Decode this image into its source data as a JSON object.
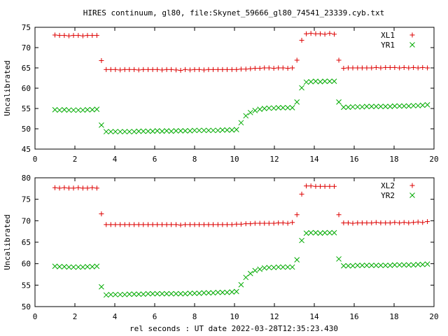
{
  "title": "HIRES continuum, gl80, file:Skynet_59666_gl80_74541_23339.cyb.txt",
  "xlabel": "rel seconds : UT date 2022-03-28T12:35:23.430",
  "chart_data": [
    {
      "type": "scatter",
      "ylabel": "Uncalibrated",
      "xlim": [
        0,
        20
      ],
      "ylim": [
        45,
        75
      ],
      "xticks": [
        0,
        2,
        4,
        6,
        8,
        10,
        12,
        14,
        16,
        18,
        20
      ],
      "yticks": [
        45,
        50,
        55,
        60,
        65,
        70,
        75
      ],
      "legend_position": "top-right",
      "series": [
        {
          "name": "XL1",
          "marker": "plus",
          "color": "#dd0000",
          "x": [
            1.0,
            1.23,
            1.47,
            1.7,
            1.93,
            2.17,
            2.4,
            2.63,
            2.87,
            3.1,
            3.33,
            3.57,
            3.8,
            4.03,
            4.27,
            4.5,
            4.73,
            4.97,
            5.2,
            5.43,
            5.67,
            5.9,
            6.13,
            6.37,
            6.6,
            6.83,
            7.07,
            7.3,
            7.53,
            7.77,
            8.0,
            8.23,
            8.47,
            8.7,
            8.93,
            9.17,
            9.4,
            9.63,
            9.87,
            10.1,
            10.33,
            10.57,
            10.8,
            11.03,
            11.27,
            11.5,
            11.73,
            11.97,
            12.2,
            12.43,
            12.67,
            12.9,
            13.13,
            13.37,
            13.6,
            13.83,
            14.07,
            14.3,
            14.53,
            14.77,
            15.0,
            15.23,
            15.47,
            15.7,
            15.93,
            16.17,
            16.4,
            16.63,
            16.87,
            17.1,
            17.33,
            17.57,
            17.8,
            18.03,
            18.27,
            18.5,
            18.73,
            18.97,
            19.2,
            19.43,
            19.67
          ],
          "y": [
            73.1,
            73.0,
            73.0,
            72.9,
            73.0,
            73.0,
            72.9,
            73.0,
            73.0,
            73.0,
            66.8,
            64.6,
            64.6,
            64.6,
            64.5,
            64.6,
            64.6,
            64.6,
            64.5,
            64.6,
            64.6,
            64.6,
            64.6,
            64.5,
            64.6,
            64.6,
            64.5,
            64.4,
            64.6,
            64.5,
            64.6,
            64.6,
            64.5,
            64.6,
            64.6,
            64.6,
            64.6,
            64.6,
            64.6,
            64.6,
            64.7,
            64.7,
            64.8,
            64.9,
            64.9,
            65.0,
            65.0,
            64.9,
            65.0,
            65.0,
            64.9,
            65.0,
            66.9,
            71.8,
            73.4,
            73.5,
            73.4,
            73.4,
            73.3,
            73.5,
            73.3,
            66.9,
            64.9,
            65.0,
            65.0,
            65.0,
            65.0,
            65.0,
            65.0,
            65.1,
            65.0,
            65.1,
            65.1,
            65.1,
            65.0,
            65.1,
            65.0,
            65.1,
            65.0,
            65.1,
            65.0
          ]
        },
        {
          "name": "YR1",
          "marker": "cross",
          "color": "#00aa00",
          "x": [
            1.0,
            1.23,
            1.47,
            1.7,
            1.93,
            2.17,
            2.4,
            2.63,
            2.87,
            3.1,
            3.33,
            3.57,
            3.8,
            4.03,
            4.27,
            4.5,
            4.73,
            4.97,
            5.2,
            5.43,
            5.67,
            5.9,
            6.13,
            6.37,
            6.6,
            6.83,
            7.07,
            7.3,
            7.53,
            7.77,
            8.0,
            8.23,
            8.47,
            8.7,
            8.93,
            9.17,
            9.4,
            9.63,
            9.87,
            10.1,
            10.33,
            10.57,
            10.8,
            11.03,
            11.27,
            11.5,
            11.73,
            11.97,
            12.2,
            12.43,
            12.67,
            12.9,
            13.13,
            13.37,
            13.6,
            13.83,
            14.07,
            14.3,
            14.53,
            14.77,
            15.0,
            15.23,
            15.47,
            15.7,
            15.93,
            16.17,
            16.4,
            16.63,
            16.87,
            17.1,
            17.33,
            17.57,
            17.8,
            18.03,
            18.27,
            18.5,
            18.73,
            18.97,
            19.2,
            19.43,
            19.67
          ],
          "y": [
            54.7,
            54.6,
            54.7,
            54.6,
            54.6,
            54.6,
            54.6,
            54.7,
            54.7,
            54.8,
            50.9,
            49.3,
            49.3,
            49.3,
            49.3,
            49.3,
            49.3,
            49.3,
            49.4,
            49.4,
            49.4,
            49.4,
            49.5,
            49.4,
            49.5,
            49.4,
            49.5,
            49.5,
            49.5,
            49.5,
            49.6,
            49.6,
            49.6,
            49.6,
            49.6,
            49.6,
            49.7,
            49.7,
            49.7,
            49.8,
            51.5,
            53.2,
            54.0,
            54.5,
            54.8,
            55.0,
            55.1,
            55.1,
            55.2,
            55.2,
            55.2,
            55.2,
            56.6,
            60.1,
            61.5,
            61.6,
            61.7,
            61.6,
            61.7,
            61.7,
            61.7,
            56.6,
            55.3,
            55.3,
            55.4,
            55.4,
            55.4,
            55.5,
            55.5,
            55.5,
            55.5,
            55.5,
            55.5,
            55.6,
            55.6,
            55.6,
            55.6,
            55.7,
            55.7,
            55.8,
            55.9
          ]
        }
      ]
    },
    {
      "type": "scatter",
      "ylabel": "Uncalibrated",
      "xlim": [
        0,
        20
      ],
      "ylim": [
        50,
        80
      ],
      "xticks": [
        0,
        2,
        4,
        6,
        8,
        10,
        12,
        14,
        16,
        18,
        20
      ],
      "yticks": [
        50,
        55,
        60,
        65,
        70,
        75,
        80
      ],
      "legend_position": "top-right",
      "series": [
        {
          "name": "XL2",
          "marker": "plus",
          "color": "#dd0000",
          "x": [
            1.0,
            1.23,
            1.47,
            1.7,
            1.93,
            2.17,
            2.4,
            2.63,
            2.87,
            3.1,
            3.33,
            3.57,
            3.8,
            4.03,
            4.27,
            4.5,
            4.73,
            4.97,
            5.2,
            5.43,
            5.67,
            5.9,
            6.13,
            6.37,
            6.6,
            6.83,
            7.07,
            7.3,
            7.53,
            7.77,
            8.0,
            8.23,
            8.47,
            8.7,
            8.93,
            9.17,
            9.4,
            9.63,
            9.87,
            10.1,
            10.33,
            10.57,
            10.8,
            11.03,
            11.27,
            11.5,
            11.73,
            11.97,
            12.2,
            12.43,
            12.67,
            12.9,
            13.13,
            13.37,
            13.6,
            13.83,
            14.07,
            14.3,
            14.53,
            14.77,
            15.0,
            15.23,
            15.47,
            15.7,
            15.93,
            16.17,
            16.4,
            16.63,
            16.87,
            17.1,
            17.33,
            17.57,
            17.8,
            18.03,
            18.27,
            18.5,
            18.73,
            18.97,
            19.2,
            19.43,
            19.67
          ],
          "y": [
            77.7,
            77.6,
            77.7,
            77.6,
            77.6,
            77.7,
            77.6,
            77.6,
            77.7,
            77.6,
            71.6,
            69.1,
            69.1,
            69.1,
            69.1,
            69.1,
            69.1,
            69.1,
            69.1,
            69.1,
            69.1,
            69.1,
            69.1,
            69.1,
            69.1,
            69.1,
            69.1,
            69.0,
            69.1,
            69.1,
            69.1,
            69.1,
            69.1,
            69.1,
            69.1,
            69.1,
            69.1,
            69.1,
            69.1,
            69.2,
            69.2,
            69.3,
            69.3,
            69.4,
            69.4,
            69.4,
            69.4,
            69.4,
            69.5,
            69.5,
            69.4,
            69.6,
            71.4,
            76.2,
            78.1,
            78.1,
            78.0,
            78.0,
            78.0,
            78.0,
            78.0,
            71.4,
            69.5,
            69.5,
            69.4,
            69.5,
            69.5,
            69.5,
            69.5,
            69.6,
            69.5,
            69.5,
            69.5,
            69.6,
            69.5,
            69.6,
            69.5,
            69.6,
            69.7,
            69.6,
            69.8
          ]
        },
        {
          "name": "YR2",
          "marker": "cross",
          "color": "#00aa00",
          "x": [
            1.0,
            1.23,
            1.47,
            1.7,
            1.93,
            2.17,
            2.4,
            2.63,
            2.87,
            3.1,
            3.33,
            3.57,
            3.8,
            4.03,
            4.27,
            4.5,
            4.73,
            4.97,
            5.2,
            5.43,
            5.67,
            5.9,
            6.13,
            6.37,
            6.6,
            6.83,
            7.07,
            7.3,
            7.53,
            7.77,
            8.0,
            8.23,
            8.47,
            8.7,
            8.93,
            9.17,
            9.4,
            9.63,
            9.87,
            10.1,
            10.33,
            10.57,
            10.8,
            11.03,
            11.27,
            11.5,
            11.73,
            11.97,
            12.2,
            12.43,
            12.67,
            12.9,
            13.13,
            13.37,
            13.6,
            13.83,
            14.07,
            14.3,
            14.53,
            14.77,
            15.0,
            15.23,
            15.47,
            15.7,
            15.93,
            16.17,
            16.4,
            16.63,
            16.87,
            17.1,
            17.33,
            17.57,
            17.8,
            18.03,
            18.27,
            18.5,
            18.73,
            18.97,
            19.2,
            19.43,
            19.67
          ],
          "y": [
            59.4,
            59.3,
            59.3,
            59.2,
            59.2,
            59.2,
            59.2,
            59.3,
            59.3,
            59.4,
            54.6,
            52.7,
            52.8,
            52.8,
            52.8,
            52.8,
            52.9,
            52.9,
            52.9,
            52.9,
            53.0,
            53.0,
            53.0,
            53.0,
            53.0,
            53.0,
            53.0,
            53.0,
            53.0,
            53.1,
            53.1,
            53.1,
            53.2,
            53.2,
            53.2,
            53.3,
            53.3,
            53.3,
            53.4,
            53.5,
            55.1,
            56.8,
            57.7,
            58.4,
            58.7,
            59.0,
            59.1,
            59.1,
            59.2,
            59.2,
            59.2,
            59.2,
            60.9,
            65.4,
            67.1,
            67.2,
            67.2,
            67.1,
            67.2,
            67.2,
            67.2,
            61.1,
            59.5,
            59.5,
            59.5,
            59.6,
            59.6,
            59.6,
            59.6,
            59.6,
            59.6,
            59.6,
            59.6,
            59.7,
            59.7,
            59.7,
            59.7,
            59.7,
            59.8,
            59.8,
            59.9
          ]
        }
      ]
    }
  ]
}
